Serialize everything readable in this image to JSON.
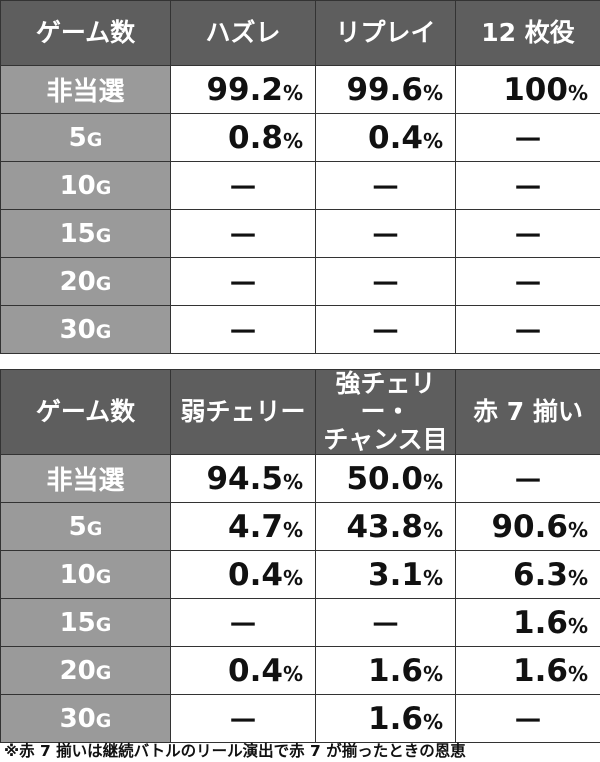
{
  "tables": [
    {
      "headers": [
        "ゲーム数",
        "ハズレ",
        "リプレイ",
        "12 枚役"
      ],
      "rows": [
        {
          "label": "非当選",
          "unit": "",
          "cells": [
            {
              "v": "99.2",
              "u": "%"
            },
            {
              "v": "99.6",
              "u": "%"
            },
            {
              "v": "100",
              "u": "%"
            }
          ]
        },
        {
          "label": "5",
          "unit": "G",
          "cells": [
            {
              "v": "0.8",
              "u": "%"
            },
            {
              "v": "0.4",
              "u": "%"
            },
            {
              "v": "－",
              "u": ""
            }
          ]
        },
        {
          "label": "10",
          "unit": "G",
          "cells": [
            {
              "v": "－",
              "u": ""
            },
            {
              "v": "－",
              "u": ""
            },
            {
              "v": "－",
              "u": ""
            }
          ]
        },
        {
          "label": "15",
          "unit": "G",
          "cells": [
            {
              "v": "－",
              "u": ""
            },
            {
              "v": "－",
              "u": ""
            },
            {
              "v": "－",
              "u": ""
            }
          ]
        },
        {
          "label": "20",
          "unit": "G",
          "cells": [
            {
              "v": "－",
              "u": ""
            },
            {
              "v": "－",
              "u": ""
            },
            {
              "v": "－",
              "u": ""
            }
          ]
        },
        {
          "label": "30",
          "unit": "G",
          "cells": [
            {
              "v": "－",
              "u": ""
            },
            {
              "v": "－",
              "u": ""
            },
            {
              "v": "－",
              "u": ""
            }
          ]
        }
      ]
    },
    {
      "headers": [
        "ゲーム数",
        "弱チェリー",
        "強チェリー・\nチャンス目",
        "赤 7 揃い"
      ],
      "rows": [
        {
          "label": "非当選",
          "unit": "",
          "cells": [
            {
              "v": "94.5",
              "u": "%"
            },
            {
              "v": "50.0",
              "u": "%"
            },
            {
              "v": "－",
              "u": ""
            }
          ]
        },
        {
          "label": "5",
          "unit": "G",
          "cells": [
            {
              "v": "4.7",
              "u": "%"
            },
            {
              "v": "43.8",
              "u": "%"
            },
            {
              "v": "90.6",
              "u": "%"
            }
          ]
        },
        {
          "label": "10",
          "unit": "G",
          "cells": [
            {
              "v": "0.4",
              "u": "%"
            },
            {
              "v": "3.1",
              "u": "%"
            },
            {
              "v": "6.3",
              "u": "%"
            }
          ]
        },
        {
          "label": "15",
          "unit": "G",
          "cells": [
            {
              "v": "－",
              "u": ""
            },
            {
              "v": "－",
              "u": ""
            },
            {
              "v": "1.6",
              "u": "%"
            }
          ]
        },
        {
          "label": "20",
          "unit": "G",
          "cells": [
            {
              "v": "0.4",
              "u": "%"
            },
            {
              "v": "1.6",
              "u": "%"
            },
            {
              "v": "1.6",
              "u": "%"
            }
          ]
        },
        {
          "label": "30",
          "unit": "G",
          "cells": [
            {
              "v": "－",
              "u": ""
            },
            {
              "v": "1.6",
              "u": "%"
            },
            {
              "v": "－",
              "u": ""
            }
          ]
        }
      ]
    }
  ],
  "footnote": "※赤 7 揃いは継続バトルのリール演出で赤 7 が揃ったときの恩恵"
}
